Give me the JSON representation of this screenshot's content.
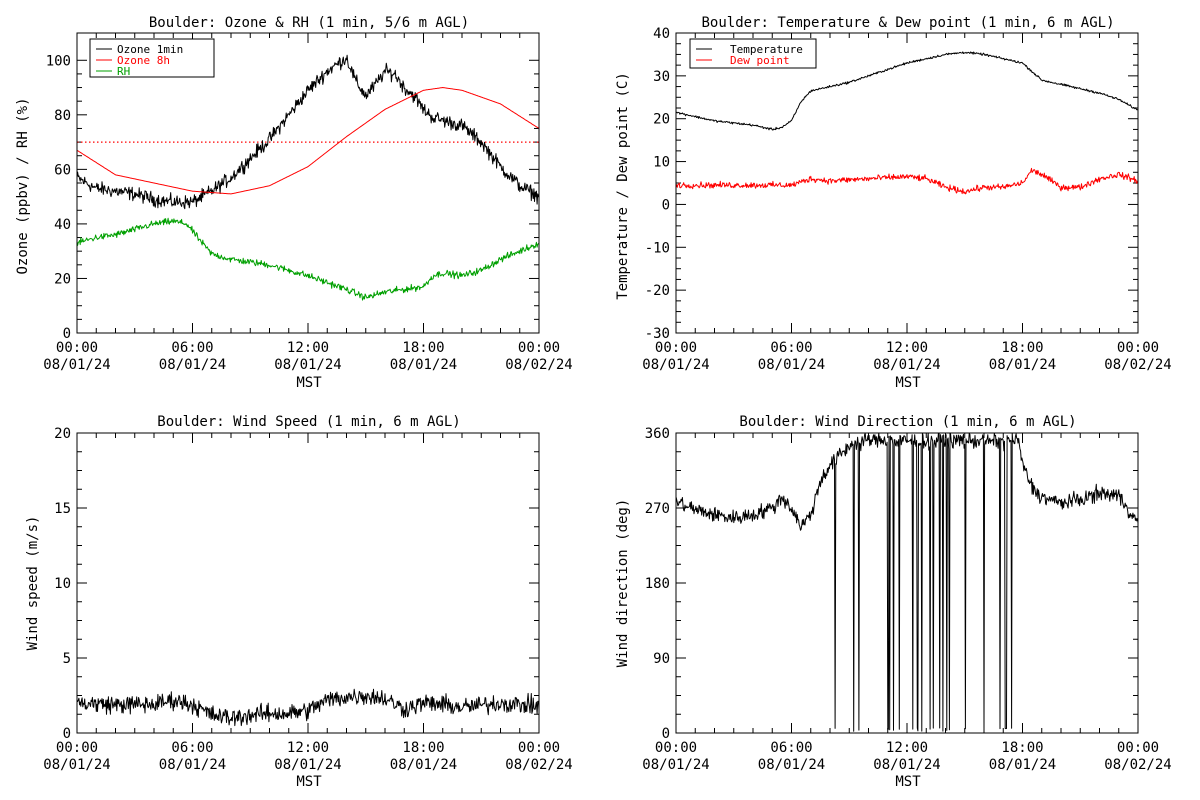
{
  "chart_data": [
    {
      "type": "line",
      "title": "Boulder: Ozone & RH (1 min, 5/6 m AGL)",
      "ylabel": "Ozone (ppbv) / RH (%)",
      "xlabel": "MST",
      "ylim": [
        0,
        110
      ],
      "yticks": [
        0,
        20,
        40,
        60,
        80,
        100
      ],
      "xlim": [
        0,
        24
      ],
      "xticks": [
        {
          "time": "00:00",
          "date": "08/01/24"
        },
        {
          "time": "06:00",
          "date": "08/01/24"
        },
        {
          "time": "12:00",
          "date": "08/01/24"
        },
        {
          "time": "18:00",
          "date": "08/01/24"
        },
        {
          "time": "00:00",
          "date": "08/02/24"
        }
      ],
      "reference_line": {
        "y": 70,
        "color": "#ff0000",
        "style": "dotted"
      },
      "legend_position": "top-left",
      "series": [
        {
          "name": "Ozone 1min",
          "color": "#000000",
          "noise": 2.5,
          "x": [
            0,
            1,
            2,
            3,
            4,
            5,
            6,
            7,
            8,
            9,
            10,
            11,
            12,
            13,
            14,
            14.5,
            15,
            15.5,
            16,
            16.5,
            17,
            17.5,
            18,
            18.5,
            19,
            20,
            21,
            22,
            23,
            24
          ],
          "y": [
            57,
            53,
            52,
            51,
            49,
            48,
            48,
            52,
            57,
            64,
            71,
            80,
            89,
            96,
            101,
            92,
            87,
            91,
            96,
            95,
            90,
            87,
            82,
            79,
            78,
            76,
            70,
            61,
            54,
            50
          ]
        },
        {
          "name": "Ozone 8h",
          "color": "#ff0000",
          "noise": 0,
          "x": [
            0,
            2,
            4,
            6,
            8,
            10,
            12,
            14,
            16,
            18,
            19,
            20,
            22,
            24
          ],
          "y": [
            67,
            58,
            55,
            52,
            51,
            54,
            61,
            72,
            82,
            89,
            90,
            89,
            84,
            75
          ]
        },
        {
          "name": "RH",
          "color": "#00a000",
          "noise": 1.2,
          "x": [
            0,
            1,
            2,
            3,
            4,
            5,
            5.7,
            6.5,
            7,
            8,
            10,
            12,
            14,
            15,
            16,
            17,
            18,
            18.5,
            19,
            20,
            21,
            22,
            23,
            24
          ],
          "y": [
            33,
            35,
            36,
            38,
            40,
            41,
            40,
            33,
            29,
            27,
            25,
            21,
            16,
            13,
            15,
            16,
            17,
            21,
            22,
            21,
            23,
            27,
            30,
            33
          ]
        }
      ]
    },
    {
      "type": "line",
      "title": "Boulder: Temperature & Dew point (1 min, 6 m AGL)",
      "ylabel": "Temperature / Dew point (C)",
      "xlabel": "MST",
      "ylim": [
        -30,
        40
      ],
      "yticks": [
        -30,
        -20,
        -10,
        0,
        10,
        20,
        30,
        40
      ],
      "xlim": [
        0,
        24
      ],
      "xticks": [
        {
          "time": "00:00",
          "date": "08/01/24"
        },
        {
          "time": "06:00",
          "date": "08/01/24"
        },
        {
          "time": "12:00",
          "date": "08/01/24"
        },
        {
          "time": "18:00",
          "date": "08/01/24"
        },
        {
          "time": "00:00",
          "date": "08/02/24"
        }
      ],
      "legend_position": "top-left",
      "series": [
        {
          "name": "Temperature",
          "color": "#000000",
          "noise": 0.25,
          "x": [
            0,
            1,
            2,
            3,
            4,
            5,
            5.5,
            6,
            6.5,
            7,
            8,
            9,
            10,
            11,
            12,
            13,
            14,
            15,
            16,
            17,
            18,
            18.5,
            19,
            20,
            21,
            22,
            23,
            24
          ],
          "y": [
            21.5,
            20.5,
            19.5,
            19,
            18.5,
            17.5,
            18,
            19.5,
            24,
            26.5,
            27.5,
            28.5,
            30,
            31.5,
            33,
            34,
            35,
            35.5,
            35,
            34,
            33,
            31,
            29,
            28,
            27,
            26,
            24.5,
            22
          ]
        },
        {
          "name": "Dew point",
          "color": "#ff0000",
          "noise": 0.7,
          "x": [
            0,
            2,
            4,
            6,
            7,
            8,
            10,
            12,
            13,
            14,
            15,
            16,
            17,
            18,
            18.5,
            19,
            20,
            21,
            22,
            23,
            24
          ],
          "y": [
            4.5,
            4.5,
            4.5,
            4.5,
            6,
            5.5,
            6,
            6.5,
            6,
            4,
            3,
            4,
            4,
            5,
            8,
            7,
            4,
            4,
            6,
            7,
            5.5
          ]
        }
      ]
    },
    {
      "type": "line",
      "title": "Boulder: Wind Speed (1 min, 6 m AGL)",
      "ylabel": "Wind speed (m/s)",
      "xlabel": "MST",
      "ylim": [
        0,
        20
      ],
      "yticks": [
        0,
        5,
        10,
        15,
        20
      ],
      "xlim": [
        0,
        24
      ],
      "xticks": [
        {
          "time": "00:00",
          "date": "08/01/24"
        },
        {
          "time": "06:00",
          "date": "08/01/24"
        },
        {
          "time": "12:00",
          "date": "08/01/24"
        },
        {
          "time": "18:00",
          "date": "08/01/24"
        },
        {
          "time": "00:00",
          "date": "08/02/24"
        }
      ],
      "series": [
        {
          "color": "#000000",
          "noise": 0.6,
          "x": [
            0,
            2,
            4,
            5,
            6,
            7,
            8,
            9,
            10,
            11,
            12,
            13,
            14,
            15,
            16,
            17,
            18,
            19,
            20,
            22,
            24
          ],
          "y": [
            2,
            1.9,
            1.9,
            2.2,
            1.9,
            1.2,
            1.0,
            1.2,
            1.3,
            1.3,
            1.5,
            2.2,
            2.4,
            2.5,
            2.3,
            1.6,
            2.0,
            1.9,
            1.7,
            2.0,
            1.8
          ]
        }
      ]
    },
    {
      "type": "line",
      "title": "Boulder: Wind Direction (1 min, 6 m AGL)",
      "ylabel": "Wind direction (deg)",
      "xlabel": "MST",
      "ylim": [
        0,
        360
      ],
      "yticks": [
        0,
        90,
        180,
        270,
        360
      ],
      "xlim": [
        0,
        24
      ],
      "xticks": [
        {
          "time": "00:00",
          "date": "08/01/24"
        },
        {
          "time": "06:00",
          "date": "08/01/24"
        },
        {
          "time": "12:00",
          "date": "08/01/24"
        },
        {
          "time": "18:00",
          "date": "08/01/24"
        },
        {
          "time": "00:00",
          "date": "08/02/24"
        }
      ],
      "series": [
        {
          "color": "#000000",
          "noise": 9,
          "wrap": [
            8.1,
            17.8
          ],
          "x": [
            0,
            1,
            2,
            3,
            4,
            5,
            5.5,
            6,
            6.5,
            7,
            7.5,
            8,
            9,
            10,
            12,
            14,
            16,
            17.8,
            18,
            18.5,
            19,
            20,
            21,
            22,
            23,
            24
          ],
          "y": [
            278,
            268,
            262,
            258,
            262,
            270,
            283,
            270,
            248,
            262,
            302,
            322,
            345,
            352,
            350,
            352,
            350,
            352,
            322,
            295,
            283,
            276,
            280,
            288,
            285,
            252
          ]
        }
      ]
    }
  ]
}
